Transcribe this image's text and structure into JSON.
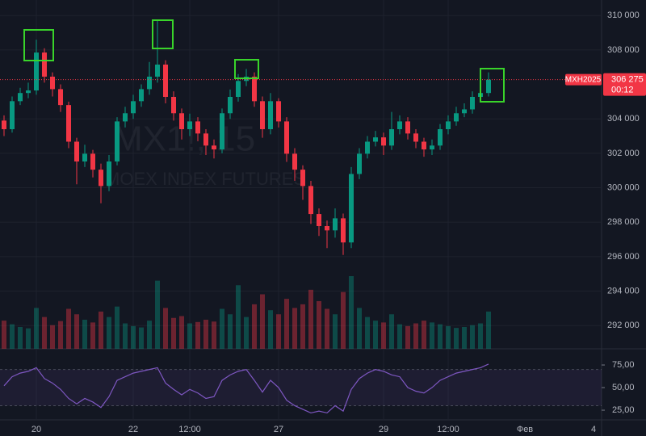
{
  "chart_data": {
    "type": "candlestick",
    "watermark_symbol": "MX1!, 15",
    "watermark_desc": "MOEX INDEX FUTURES",
    "symbol_tag": "MXH2025",
    "last_price": {
      "value": 306275,
      "label": "306 275"
    },
    "countdown": "00:12",
    "up_color": "#089981",
    "down_color": "#f23645",
    "grid": true,
    "ylim": [
      290650,
      310900
    ],
    "yticks": [
      {
        "value": 310000,
        "label": "310 000"
      },
      {
        "value": 308000,
        "label": "308 000"
      },
      {
        "value": 304000,
        "label": "304 000"
      },
      {
        "value": 302000,
        "label": "302 000"
      },
      {
        "value": 300000,
        "label": "300 000"
      },
      {
        "value": 298000,
        "label": "298 000"
      },
      {
        "value": 296000,
        "label": "296 000"
      },
      {
        "value": 294000,
        "label": "294 000"
      },
      {
        "value": 292000,
        "label": "292 000"
      }
    ],
    "categories": [
      null,
      null,
      null,
      null,
      "20",
      null,
      null,
      null,
      null,
      null,
      null,
      null,
      null,
      null,
      null,
      null,
      "22",
      null,
      null,
      null,
      null,
      null,
      null,
      "12:00",
      null,
      null,
      null,
      null,
      null,
      null,
      null,
      null,
      null,
      null,
      "27",
      null,
      null,
      null,
      null,
      null,
      null,
      null,
      null,
      null,
      null,
      null,
      null,
      "29",
      null,
      null,
      null,
      null,
      null,
      null,
      null,
      "12:00",
      null,
      null,
      null,
      null,
      null
    ],
    "future_time_labels": [
      "Фев",
      "4"
    ],
    "open": [
      303900,
      303400,
      305025,
      305500,
      305650,
      307850,
      306450,
      305725,
      304800,
      302675,
      301525,
      301975,
      301050,
      300100,
      301525,
      303850,
      304325,
      305025,
      305725,
      306450,
      307150,
      305275,
      304325,
      303400,
      303850,
      303150,
      302450,
      302225,
      304325,
      305275,
      306200,
      306450,
      305025,
      303400,
      305025,
      303850,
      301975,
      301050,
      300100,
      298475,
      297775,
      297525,
      298225,
      296825,
      300800,
      301975,
      302675,
      302925,
      302450,
      303400,
      303850,
      303150,
      302675,
      302225,
      302450,
      303400,
      303850,
      304325,
      304550,
      305275,
      305500
    ],
    "high": [
      304200,
      305300,
      305800,
      306100,
      308600,
      308100,
      306700,
      306000,
      305000,
      302900,
      302500,
      302200,
      301400,
      301900,
      304100,
      304700,
      305400,
      306000,
      307300,
      309700,
      307400,
      305600,
      304600,
      304300,
      304100,
      303400,
      302800,
      304600,
      305700,
      306600,
      306900,
      306700,
      305300,
      305500,
      305200,
      304100,
      302300,
      301300,
      300400,
      298800,
      298100,
      298800,
      298500,
      301200,
      302300,
      303000,
      303300,
      303200,
      304400,
      304200,
      304100,
      303400,
      302900,
      302800,
      303700,
      304200,
      304700,
      304900,
      305600,
      305900,
      306700
    ],
    "low": [
      303000,
      303200,
      304800,
      305200,
      305400,
      306100,
      305300,
      304400,
      302300,
      300200,
      301200,
      300600,
      299100,
      299800,
      301300,
      303500,
      304000,
      304700,
      305400,
      306100,
      304900,
      303900,
      302800,
      303000,
      302700,
      301900,
      301700,
      302000,
      304000,
      305000,
      305900,
      304700,
      302900,
      303100,
      303500,
      301500,
      300400,
      299300,
      297900,
      297200,
      296500,
      297100,
      296100,
      296500,
      300500,
      301700,
      302400,
      301900,
      302200,
      303100,
      302800,
      302300,
      301800,
      301900,
      302200,
      303100,
      303600,
      304100,
      304300,
      305200,
      305300
    ],
    "close": [
      303400,
      305025,
      305500,
      305650,
      307850,
      306450,
      305725,
      304800,
      302675,
      301525,
      301975,
      301050,
      300100,
      301525,
      303850,
      304325,
      305025,
      305725,
      306450,
      307150,
      305275,
      304325,
      303400,
      303850,
      303150,
      302450,
      302225,
      304325,
      305275,
      306200,
      306450,
      305025,
      303400,
      305025,
      303850,
      301975,
      301050,
      300100,
      298475,
      297775,
      297525,
      298225,
      296825,
      300800,
      301975,
      302675,
      302925,
      302450,
      303400,
      303850,
      303150,
      302675,
      302225,
      302450,
      303400,
      303850,
      304325,
      304550,
      305275,
      305500,
      306275
    ],
    "volume": [
      620,
      540,
      480,
      450,
      900,
      700,
      520,
      610,
      880,
      760,
      640,
      580,
      820,
      700,
      930,
      560,
      500,
      470,
      620,
      1500,
      900,
      680,
      720,
      560,
      590,
      640,
      600,
      880,
      760,
      1400,
      700,
      980,
      1200,
      850,
      760,
      1100,
      900,
      980,
      1300,
      1050,
      880,
      760,
      1250,
      1600,
      900,
      700,
      620,
      580,
      760,
      540,
      500,
      560,
      620,
      580,
      540,
      500,
      460,
      480,
      520,
      560,
      820
    ],
    "rsi": {
      "color": "#7e57c2",
      "band": [
        30,
        70
      ],
      "ylim": [
        17,
        92
      ],
      "yticks": [
        {
          "value": 75,
          "label": "75,00"
        },
        {
          "value": 50,
          "label": "50,00"
        },
        {
          "value": 25,
          "label": "25,00"
        }
      ],
      "values": [
        52,
        62,
        66,
        68,
        72,
        60,
        55,
        48,
        38,
        32,
        38,
        34,
        28,
        40,
        58,
        62,
        66,
        68,
        70,
        72,
        55,
        48,
        42,
        48,
        44,
        38,
        40,
        58,
        64,
        68,
        70,
        58,
        45,
        58,
        50,
        36,
        30,
        26,
        22,
        24,
        22,
        30,
        24,
        48,
        60,
        66,
        70,
        68,
        64,
        62,
        50,
        46,
        44,
        50,
        58,
        62,
        66,
        68,
        70,
        72,
        76
      ]
    }
  }
}
